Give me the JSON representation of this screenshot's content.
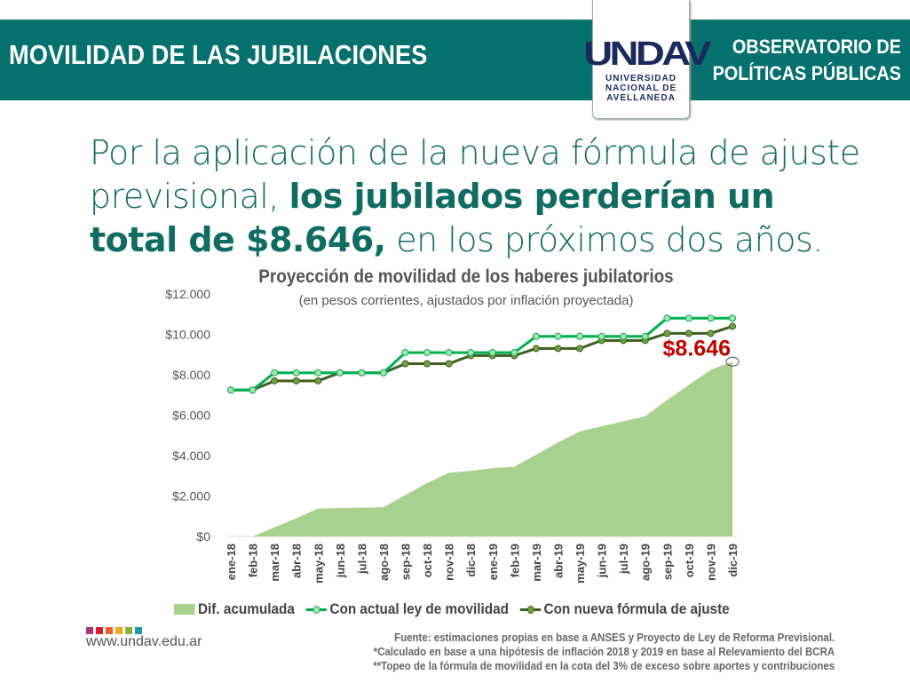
{
  "header": {
    "title": "MOVILIDAD DE LAS JUBILACIONES",
    "observatorio_line1": "OBSERVATORIO DE",
    "observatorio_line2": "POLÍTICAS PÚBLICAS",
    "logo_mark": "UNDAV",
    "logo_line1": "UNIVERSIDAD",
    "logo_line2": "NACIONAL DE",
    "logo_line3": "AVELLANEDA"
  },
  "headline": {
    "part1": "Por la aplicación de la nueva fórmula de ajuste previsional, ",
    "bold": "los jubilados perderían un total de $8.646,",
    "part2": " en los próximos dos años."
  },
  "colors": {
    "brand": "#05716c",
    "area": "#a9d18e",
    "actual": "#00b050",
    "nueva": "#3f5f24",
    "highlight": "#c00000"
  },
  "chart_data": {
    "type": "line",
    "title": "Proyección de movilidad de los haberes jubilatorios",
    "subtitle": "(en pesos corrientes, ajustados por inflación proyectada)",
    "ylim": [
      0,
      12000
    ],
    "yticks": [
      "$0",
      "$2.000",
      "$4.000",
      "$6.000",
      "$8.000",
      "$10.000",
      "$12.000"
    ],
    "ytick_values": [
      0,
      2000,
      4000,
      6000,
      8000,
      10000,
      12000
    ],
    "categories": [
      "ene-18",
      "feb-18",
      "mar-18",
      "abr-18",
      "may-18",
      "jun-18",
      "jul-18",
      "ago-18",
      "sep-18",
      "oct-18",
      "nov-18",
      "dic-18",
      "ene-19",
      "feb-19",
      "mar-19",
      "abr-19",
      "may-19",
      "jun-19",
      "jul-19",
      "ago-19",
      "sep-19",
      "oct-19",
      "nov-19",
      "dic-19"
    ],
    "series": [
      {
        "name": "Dif. acumulada",
        "kind": "area",
        "values": [
          0,
          0,
          450,
          900,
          1380,
          1400,
          1420,
          1450,
          2050,
          2650,
          3150,
          3250,
          3380,
          3450,
          4050,
          4650,
          5200,
          5450,
          5700,
          5950,
          6750,
          7500,
          8250,
          8646
        ]
      },
      {
        "name": "Con actual ley de movilidad",
        "kind": "line",
        "values": [
          7250,
          7250,
          8100,
          8100,
          8100,
          8100,
          8100,
          8100,
          9100,
          9100,
          9100,
          9100,
          9100,
          9100,
          9900,
          9900,
          9900,
          9900,
          9900,
          9900,
          10800,
          10800,
          10800,
          10800
        ]
      },
      {
        "name": "Con nueva fórmula de ajuste",
        "kind": "line",
        "values": [
          7250,
          7250,
          7700,
          7700,
          7700,
          8100,
          8100,
          8100,
          8550,
          8550,
          8550,
          8950,
          8950,
          8950,
          9300,
          9300,
          9300,
          9700,
          9700,
          9700,
          10050,
          10050,
          10050,
          10400
        ]
      }
    ],
    "annotation": "$8.646",
    "legend": "bottom"
  },
  "footer": {
    "url": "www.undav.edu.ar",
    "source": "Fuente: estimaciones propias en base a ANSES y Proyecto de Ley de Reforma Previsional.",
    "note1": "*Calculado en base a una hipótesis de inflación 2018 y 2019 en base al Relevamiento del BCRA",
    "note2": "**Topeo de la fórmula de movilidad en la cota del 3% de exceso sobre aportes y contribuciones"
  }
}
